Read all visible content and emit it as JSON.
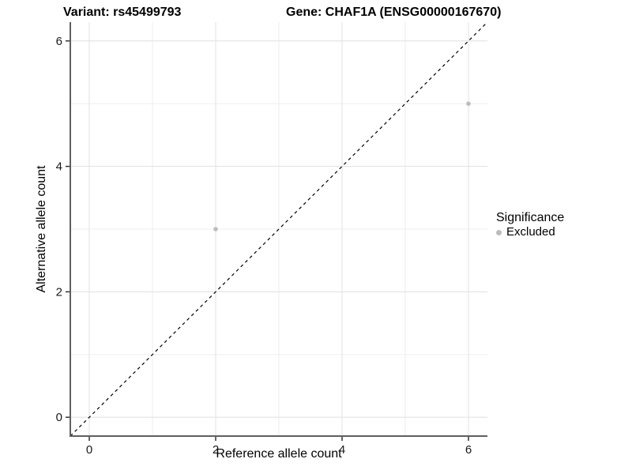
{
  "chart_data": {
    "type": "scatter",
    "title_left": "Variant: rs45499793",
    "title_right": "Gene: CHAF1A (ENSG00000167670)",
    "xlabel": "Reference allele count",
    "ylabel": "Alternative allele count",
    "xlim": [
      -0.3,
      6.3
    ],
    "ylim": [
      -0.3,
      6.3
    ],
    "x_ticks": [
      0,
      2,
      4,
      6
    ],
    "y_ticks": [
      0,
      2,
      4,
      6
    ],
    "grid": {
      "x_values": [
        0,
        1,
        2,
        3,
        4,
        5,
        6
      ],
      "y_values": [
        0,
        1,
        2,
        3,
        4,
        5,
        6
      ],
      "on": true
    },
    "identity_line": {
      "style": "dashed",
      "from": [
        -0.3,
        -0.3
      ],
      "to": [
        6.3,
        6.3
      ],
      "color": "#000000"
    },
    "series": [
      {
        "name": "Excluded",
        "color": "#bdbdbd",
        "points": [
          {
            "x": 2,
            "y": 3
          },
          {
            "x": 6,
            "y": 5
          }
        ]
      }
    ],
    "legend": {
      "position": "right",
      "title": "Significance",
      "items": [
        {
          "label": "Excluded",
          "color": "#bdbdbd"
        }
      ]
    },
    "colors": {
      "grid_major": "#e3e3e3",
      "grid_minor": "#ececec",
      "axis_line": "#5f5f5f",
      "tick": "#333333",
      "point": "#bdbdbd"
    }
  }
}
